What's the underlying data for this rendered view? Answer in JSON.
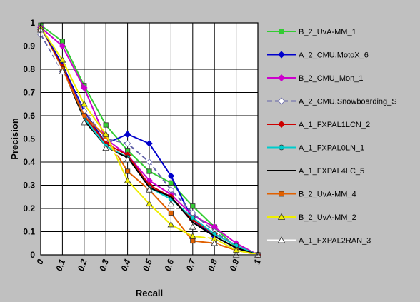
{
  "chart_data": {
    "type": "line",
    "xlabel": "Recall",
    "ylabel": "Precision",
    "xlim": [
      0,
      1
    ],
    "ylim": [
      0,
      1
    ],
    "grid": true,
    "legend_position": "right",
    "background": "#c0c0c0",
    "plot_background": "#ffffff",
    "x": [
      0,
      0.1,
      0.2,
      0.3,
      0.4,
      0.5,
      0.6,
      0.7,
      0.8,
      0.9,
      1
    ],
    "x_tick_labels": [
      "0",
      "0.1",
      "0.2",
      "0.3",
      "0.4",
      "0.5",
      "0.6",
      "0.7",
      "0.8",
      "0.9",
      "1"
    ],
    "y_tick_labels": [
      "0",
      "0.1",
      "0.2",
      "0.3",
      "0.4",
      "0.5",
      "0.6",
      "0.7",
      "0.8",
      "0.9",
      "1"
    ],
    "series": [
      {
        "name": "B_2_UvA-MM_1",
        "color": "#33cc33",
        "marker": "square",
        "dash": "solid",
        "values": [
          0.99,
          0.92,
          0.73,
          0.56,
          0.45,
          0.36,
          0.31,
          0.21,
          0.12,
          0.03,
          0.0
        ]
      },
      {
        "name": "A_2_CMU.MotoX_6",
        "color": "#0000cc",
        "marker": "diamond",
        "dash": "solid",
        "values": [
          0.98,
          0.82,
          0.62,
          0.48,
          0.52,
          0.48,
          0.34,
          0.15,
          0.08,
          0.03,
          0.0
        ]
      },
      {
        "name": "B_2_CMU_Mon_1",
        "color": "#cc00cc",
        "marker": "diamond",
        "dash": "solid",
        "values": [
          0.98,
          0.9,
          0.72,
          0.5,
          0.43,
          0.32,
          0.26,
          0.17,
          0.12,
          0.05,
          0.0
        ]
      },
      {
        "name": "A_2_CMU.Snowboarding_S",
        "color": "#6666aa",
        "marker": "diamond-open",
        "dash": "dashed",
        "values": [
          0.95,
          0.79,
          0.62,
          0.5,
          0.48,
          0.4,
          0.28,
          0.18,
          0.1,
          0.04,
          0.0
        ]
      },
      {
        "name": "A_1_FXPAL1LCN_2",
        "color": "#cc0000",
        "marker": "diamond",
        "dash": "solid",
        "values": [
          0.97,
          0.81,
          0.6,
          0.48,
          0.43,
          0.3,
          0.25,
          0.15,
          0.09,
          0.04,
          0.0
        ]
      },
      {
        "name": "A_1_FXPAL0LN_1",
        "color": "#00cccc",
        "marker": "circle",
        "dash": "solid",
        "values": [
          0.97,
          0.8,
          0.59,
          0.47,
          0.42,
          0.29,
          0.24,
          0.16,
          0.09,
          0.04,
          0.0
        ]
      },
      {
        "name": "A_1_FXPAL4LC_5",
        "color": "#000000",
        "marker": "none",
        "dash": "solid",
        "values": [
          0.97,
          0.8,
          0.58,
          0.46,
          0.42,
          0.29,
          0.25,
          0.14,
          0.08,
          0.03,
          0.0
        ]
      },
      {
        "name": "B_2_UvA-MM_4",
        "color": "#e06000",
        "marker": "square",
        "dash": "solid",
        "values": [
          0.97,
          0.8,
          0.6,
          0.51,
          0.36,
          0.28,
          0.18,
          0.06,
          0.05,
          0.02,
          0.0
        ]
      },
      {
        "name": "B_2_UvA-MM_2",
        "color": "#eeee00",
        "marker": "triangle",
        "dash": "solid",
        "values": [
          0.98,
          0.84,
          0.65,
          0.52,
          0.32,
          0.22,
          0.13,
          0.08,
          0.07,
          0.02,
          0.0
        ]
      },
      {
        "name": "A_1_FXPAL2RAN_3",
        "color": "#ffffff",
        "marker": "triangle",
        "dash": "solid",
        "values": [
          0.97,
          0.79,
          0.57,
          0.46,
          0.41,
          0.28,
          0.22,
          0.12,
          0.05,
          0.0,
          0.0
        ]
      }
    ]
  }
}
